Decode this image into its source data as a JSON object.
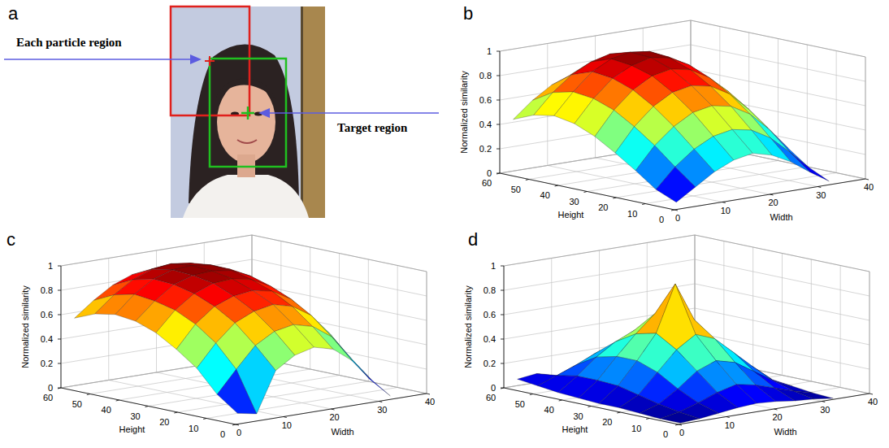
{
  "image_panel": {
    "panel": "a",
    "annotations": [
      "Each particle region",
      "Target region"
    ]
  },
  "chart_data": [
    {
      "type": "surface",
      "panel": "b",
      "x_label": "Width",
      "y_label": "Height",
      "z_label": "Normalized similarity",
      "x": [
        1,
        5,
        9,
        13,
        17,
        21,
        25,
        29,
        33
      ],
      "y": [
        1,
        8,
        15,
        22,
        29,
        36,
        43,
        50,
        57
      ],
      "values": [
        [
          0.05,
          0.15,
          0.25,
          0.32,
          0.35,
          0.31,
          0.23,
          0.12,
          0.02
        ],
        [
          0.12,
          0.28,
          0.4,
          0.48,
          0.51,
          0.48,
          0.39,
          0.25,
          0.1
        ],
        [
          0.24,
          0.42,
          0.55,
          0.64,
          0.67,
          0.64,
          0.55,
          0.4,
          0.22
        ],
        [
          0.35,
          0.54,
          0.68,
          0.77,
          0.8,
          0.77,
          0.68,
          0.53,
          0.35
        ],
        [
          0.45,
          0.64,
          0.78,
          0.87,
          0.9,
          0.87,
          0.78,
          0.64,
          0.46
        ],
        [
          0.52,
          0.7,
          0.84,
          0.92,
          0.96,
          0.93,
          0.85,
          0.72,
          0.55
        ],
        [
          0.55,
          0.72,
          0.86,
          0.94,
          0.97,
          0.95,
          0.88,
          0.76,
          0.6
        ],
        [
          0.52,
          0.68,
          0.8,
          0.88,
          0.92,
          0.9,
          0.84,
          0.74,
          0.6
        ],
        [
          0.45,
          0.58,
          0.68,
          0.74,
          0.76,
          0.74,
          0.68,
          0.6,
          0.5
        ]
      ],
      "xlim": [
        0,
        40
      ],
      "xticks": [
        0,
        10,
        20,
        30,
        40
      ],
      "ylim": [
        0,
        60
      ],
      "yticks": [
        0,
        10,
        20,
        30,
        40,
        50,
        60
      ],
      "zlim": [
        0,
        1
      ],
      "zticks": [
        0,
        0.2,
        0.4,
        0.6,
        0.8,
        1
      ],
      "color": "jet",
      "grid": true
    },
    {
      "type": "surface",
      "panel": "c",
      "x_label": "Width",
      "y_label": "Height",
      "z_label": "Normalized similarity",
      "x": [
        1,
        5,
        9,
        13,
        17,
        21,
        25,
        29,
        33
      ],
      "y": [
        1,
        8,
        15,
        22,
        29,
        36,
        43,
        50,
        57
      ],
      "values": [
        [
          0.08,
          0.05,
          0.38,
          0.48,
          0.52,
          0.48,
          0.36,
          0.18,
          0.02
        ],
        [
          0.2,
          0.38,
          0.55,
          0.64,
          0.67,
          0.63,
          0.52,
          0.32,
          0.12
        ],
        [
          0.38,
          0.56,
          0.7,
          0.77,
          0.8,
          0.76,
          0.66,
          0.48,
          0.26
        ],
        [
          0.5,
          0.68,
          0.8,
          0.86,
          0.88,
          0.85,
          0.76,
          0.6,
          0.4
        ],
        [
          0.6,
          0.76,
          0.87,
          0.93,
          0.94,
          0.91,
          0.83,
          0.7,
          0.52
        ],
        [
          0.66,
          0.8,
          0.91,
          0.96,
          0.97,
          0.95,
          0.88,
          0.76,
          0.6
        ],
        [
          0.68,
          0.82,
          0.92,
          0.97,
          0.98,
          0.96,
          0.9,
          0.8,
          0.66
        ],
        [
          0.65,
          0.78,
          0.88,
          0.94,
          0.96,
          0.94,
          0.88,
          0.78,
          0.66
        ],
        [
          0.58,
          0.7,
          0.8,
          0.86,
          0.88,
          0.86,
          0.8,
          0.72,
          0.62
        ]
      ],
      "xlim": [
        0,
        40
      ],
      "xticks": [
        0,
        10,
        20,
        30,
        40
      ],
      "ylim": [
        0,
        60
      ],
      "yticks": [
        0,
        10,
        20,
        30,
        40,
        50,
        60
      ],
      "zlim": [
        0,
        1
      ],
      "zticks": [
        0,
        0.2,
        0.4,
        0.6,
        0.8,
        1
      ],
      "color": "jet",
      "grid": true
    },
    {
      "type": "surface",
      "panel": "d",
      "x_label": "Width",
      "y_label": "Height",
      "z_label": "Normalized similarity",
      "x": [
        1,
        5,
        9,
        13,
        17,
        21,
        25,
        29,
        33
      ],
      "y": [
        1,
        8,
        15,
        22,
        29,
        36,
        43,
        50,
        57
      ],
      "values": [
        [
          0.0,
          0.01,
          0.03,
          0.05,
          0.06,
          0.05,
          0.03,
          0.02,
          0.0
        ],
        [
          0.0,
          0.03,
          0.08,
          0.14,
          0.18,
          0.15,
          0.1,
          0.05,
          0.01
        ],
        [
          0.01,
          0.06,
          0.16,
          0.28,
          0.34,
          0.3,
          0.2,
          0.1,
          0.03
        ],
        [
          0.02,
          0.1,
          0.26,
          0.42,
          0.52,
          0.46,
          0.32,
          0.18,
          0.05
        ],
        [
          0.02,
          0.14,
          0.32,
          0.52,
          0.9,
          0.58,
          0.4,
          0.22,
          0.07
        ],
        [
          0.03,
          0.15,
          0.32,
          0.48,
          0.62,
          0.55,
          0.38,
          0.22,
          0.08
        ],
        [
          0.04,
          0.15,
          0.28,
          0.38,
          0.45,
          0.42,
          0.32,
          0.2,
          0.08
        ],
        [
          0.06,
          0.12,
          0.18,
          0.25,
          0.3,
          0.28,
          0.22,
          0.15,
          0.08
        ],
        [
          0.08,
          0.1,
          0.05,
          0.1,
          0.15,
          0.18,
          0.16,
          0.12,
          0.08
        ]
      ],
      "xlim": [
        0,
        40
      ],
      "xticks": [
        0,
        10,
        20,
        30,
        40
      ],
      "ylim": [
        0,
        60
      ],
      "yticks": [
        0,
        10,
        20,
        30,
        40,
        50,
        60
      ],
      "zlim": [
        0,
        1
      ],
      "zticks": [
        0,
        0.2,
        0.4,
        0.6,
        0.8,
        1
      ],
      "color": "jet",
      "grid": true
    }
  ]
}
